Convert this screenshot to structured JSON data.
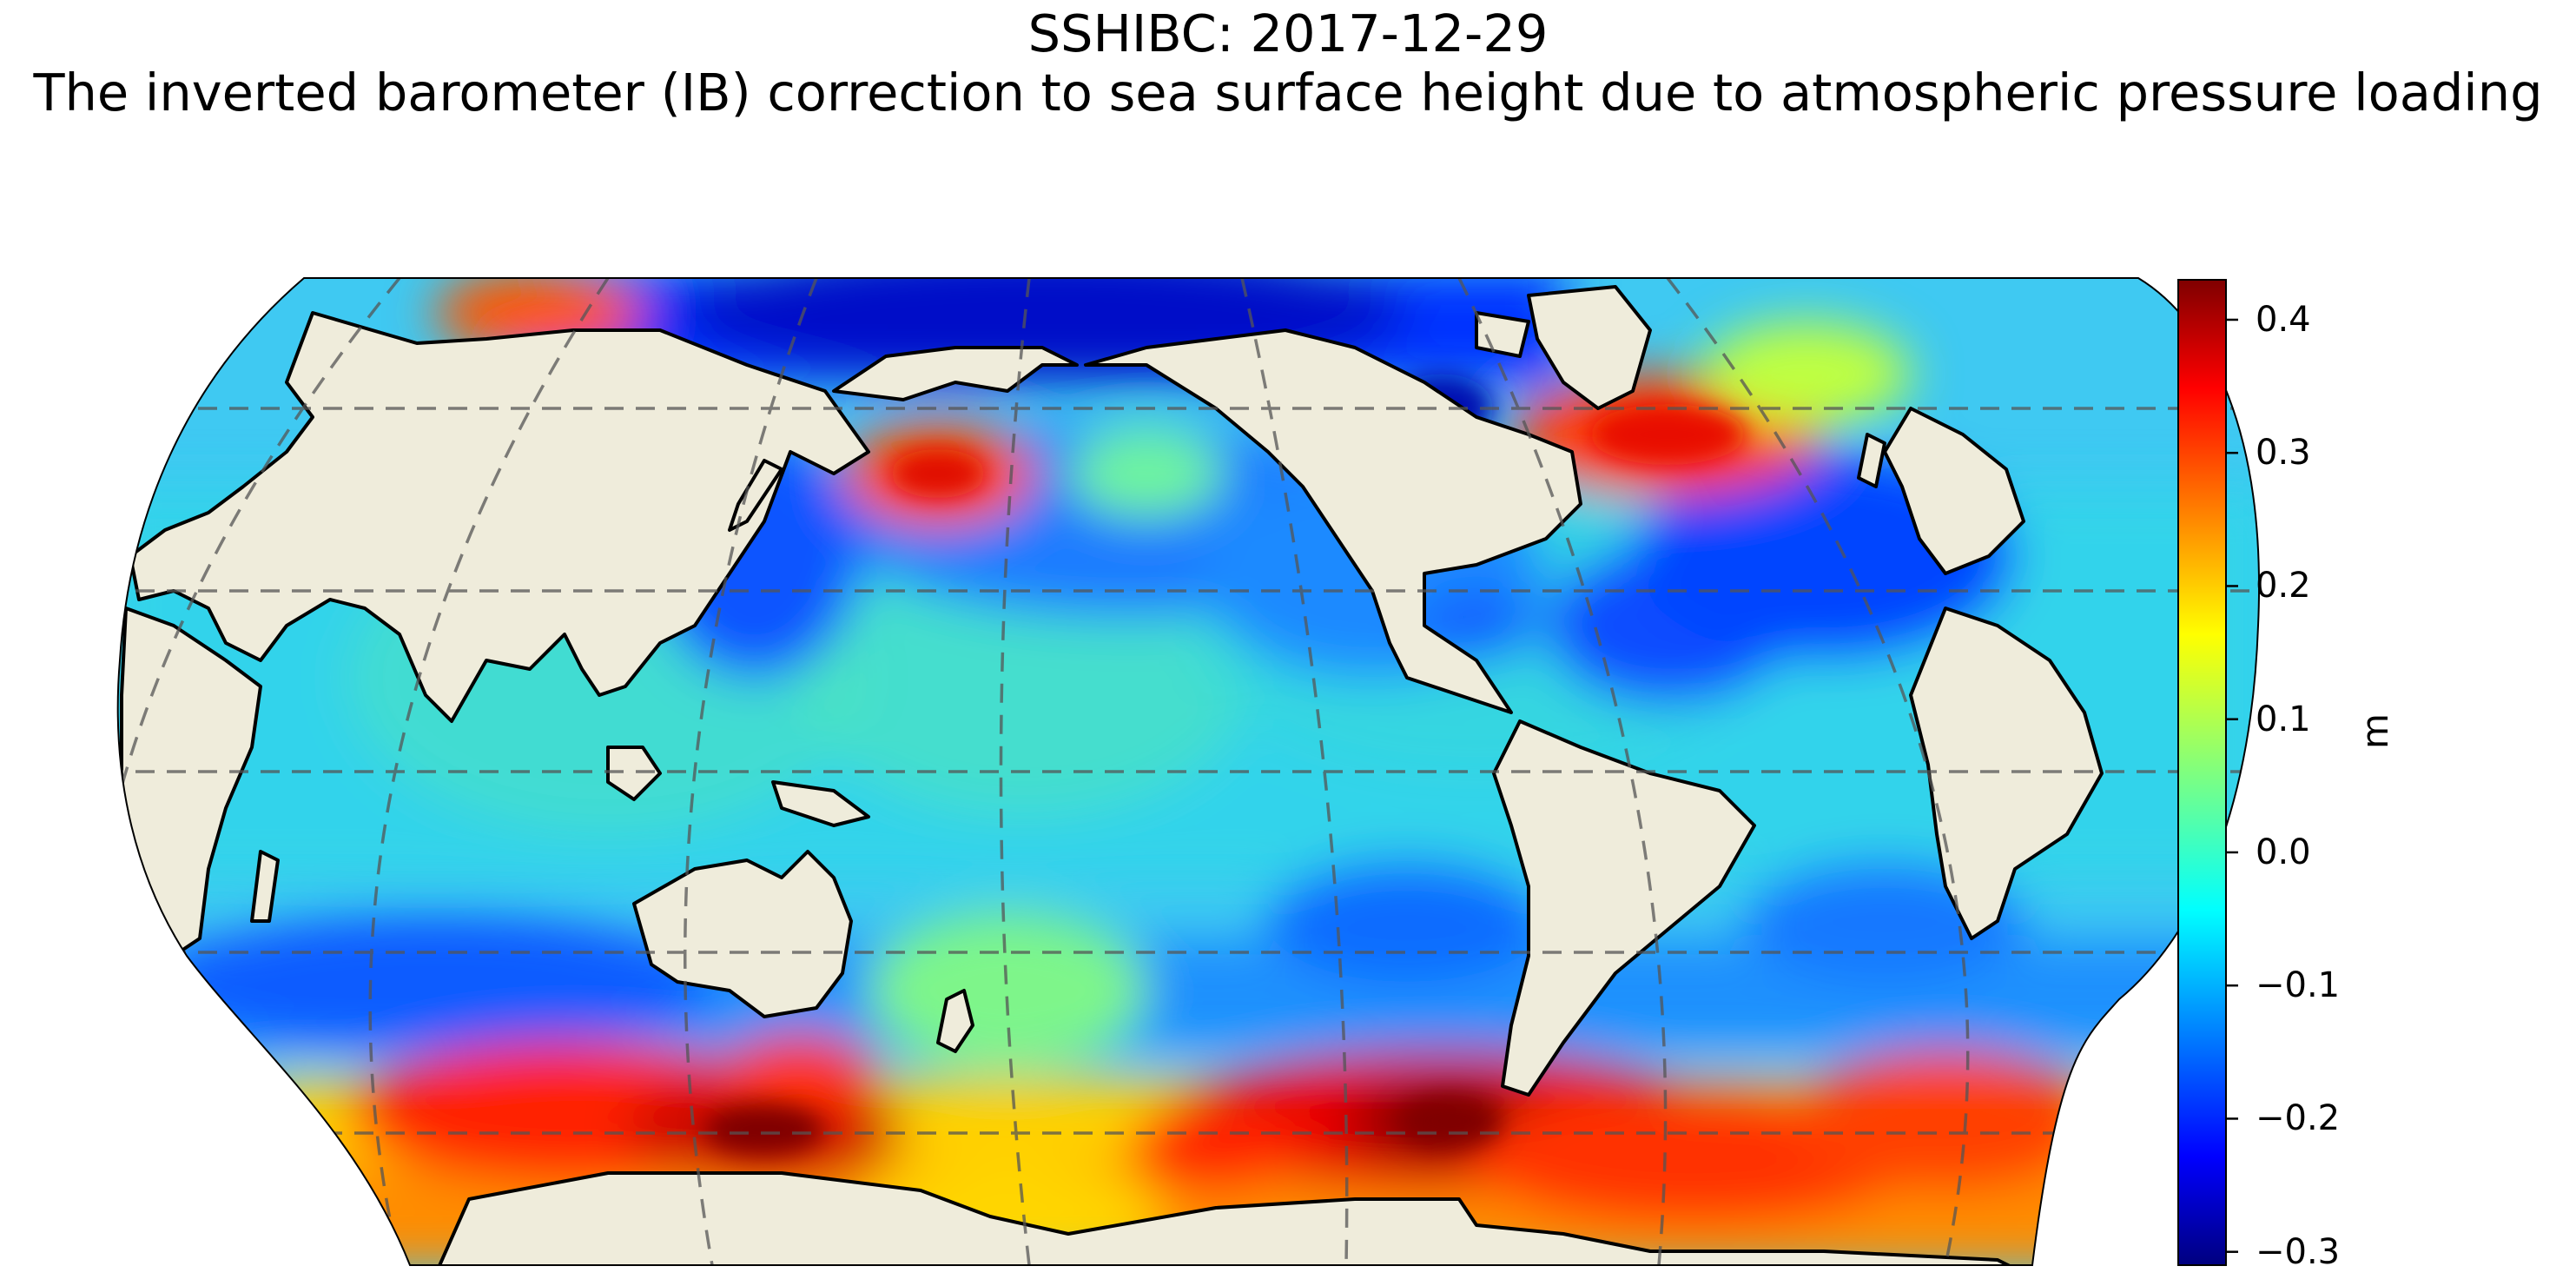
{
  "title": {
    "line1": "SSHIBC: 2017-12-29",
    "line2": "The inverted barometer (IB) correction to sea surface height due to atmospheric pressure loading"
  },
  "map": {
    "projection": "Robinson",
    "central_longitude": 180,
    "gridlines": "dashed gray",
    "land_color": "#efecdb",
    "coastline_color": "#000000"
  },
  "colorbar": {
    "colormap": "jet",
    "unit_label": "m",
    "min": -0.31,
    "max": 0.43,
    "ticks": [
      {
        "value": 0.4,
        "label": "0.4"
      },
      {
        "value": 0.3,
        "label": "0.3"
      },
      {
        "value": 0.2,
        "label": "0.2"
      },
      {
        "value": 0.1,
        "label": "0.1"
      },
      {
        "value": 0.0,
        "label": "0.0"
      },
      {
        "value": -0.1,
        "label": "−0.1"
      },
      {
        "value": -0.2,
        "label": "−0.2"
      },
      {
        "value": -0.3,
        "label": "−0.3"
      }
    ]
  },
  "anomalies": [
    {
      "region": "Southern Ocean south of Australia",
      "level": "high",
      "value": 0.4
    },
    {
      "region": "Southern Ocean south of South America",
      "level": "high",
      "value": 0.43
    },
    {
      "region": "Southern Ocean south of Africa",
      "level": "high",
      "value": 0.4
    },
    {
      "region": "North Atlantic near Greenland",
      "level": "high",
      "value": 0.33
    },
    {
      "region": "North Pacific near Bering Sea",
      "level": "high",
      "value": 0.3
    },
    {
      "region": "Hudson Bay",
      "level": "low",
      "value": -0.25
    },
    {
      "region": "Arctic Ocean",
      "level": "low",
      "value": -0.22
    },
    {
      "region": "North Atlantic off western Africa",
      "level": "low",
      "value": -0.2
    }
  ]
}
